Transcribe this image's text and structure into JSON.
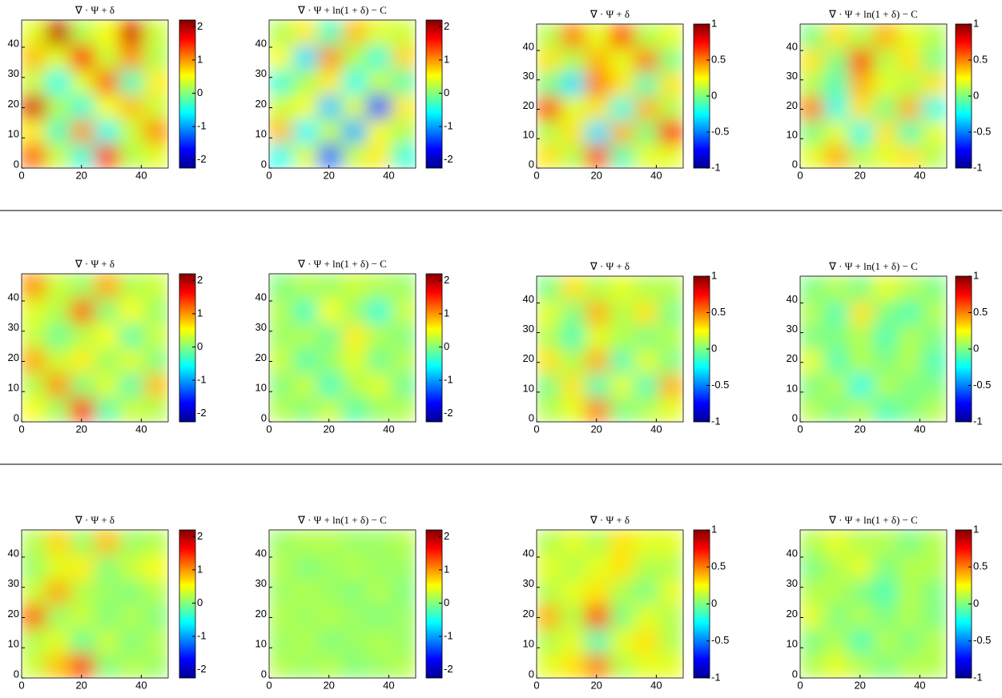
{
  "chart_data": [
    {
      "type": "heatmap",
      "title": "∇ · Ψ + δ",
      "colormap": "jet",
      "xlim": [
        0,
        49
      ],
      "ylim": [
        0,
        49
      ],
      "xticks": [
        0,
        20,
        40
      ],
      "yticks": [
        0,
        10,
        20,
        30,
        40
      ],
      "clim": [
        -2.25,
        2.2
      ],
      "cticks": [
        2,
        1,
        0,
        -1,
        -2
      ],
      "z": [
        [
          1.2,
          0.3,
          -0.4,
          1.5,
          0.2,
          0.4
        ],
        [
          0.6,
          -0.3,
          1.0,
          -0.5,
          0.3,
          1.0
        ],
        [
          1.8,
          0.2,
          -0.4,
          0.5,
          0.8,
          0.3
        ],
        [
          0.3,
          -0.5,
          0.4,
          1.2,
          -0.3,
          0.6
        ],
        [
          0.8,
          0.4,
          1.6,
          0.3,
          1.0,
          0.2
        ],
        [
          0.4,
          1.9,
          0.2,
          0.5,
          1.8,
          0.3
        ]
      ]
    },
    {
      "type": "heatmap",
      "title": "∇ · Ψ + ln(1 + δ) − C",
      "colormap": "jet",
      "xlim": [
        0,
        49
      ],
      "ylim": [
        0,
        49
      ],
      "xticks": [
        0,
        20,
        40
      ],
      "yticks": [
        0,
        10,
        20,
        30,
        40
      ],
      "clim": [
        -2.25,
        2.2
      ],
      "cticks": [
        2,
        1,
        0,
        -1,
        -2
      ],
      "z": [
        [
          -0.5,
          0.4,
          -1.2,
          0.3,
          0.6,
          -0.4
        ],
        [
          0.8,
          -0.6,
          0.3,
          -0.9,
          0.5,
          0.2
        ],
        [
          0.3,
          0.5,
          -0.8,
          0.4,
          -1.3,
          0.6
        ],
        [
          -0.4,
          0.2,
          0.6,
          -0.5,
          0.3,
          -0.2
        ],
        [
          0.5,
          -0.7,
          1.0,
          0.2,
          -0.4,
          0.7
        ],
        [
          0.2,
          0.6,
          -0.3,
          0.8,
          0.4,
          0.3
        ]
      ]
    },
    {
      "type": "heatmap",
      "title": "∇ · Ψ + δ",
      "colormap": "jet",
      "xlim": [
        0,
        49
      ],
      "ylim": [
        0,
        49
      ],
      "xticks": [
        0,
        20,
        40
      ],
      "yticks": [
        0,
        10,
        20,
        30,
        40
      ],
      "clim": [
        -1,
        1
      ],
      "cticks": [
        1,
        0.5,
        0,
        -0.5,
        -1
      ],
      "z": [
        [
          0.3,
          0.1,
          0.6,
          -0.1,
          0.2,
          0.2
        ],
        [
          0.1,
          0.3,
          -0.3,
          0.4,
          0.0,
          0.7
        ],
        [
          0.6,
          0.2,
          0.3,
          -0.2,
          0.4,
          0.1
        ],
        [
          0.0,
          -0.3,
          0.5,
          0.3,
          -0.1,
          0.3
        ],
        [
          0.3,
          0.1,
          0.4,
          0.2,
          0.5,
          0.0
        ],
        [
          0.1,
          0.5,
          0.2,
          0.6,
          0.1,
          0.2
        ]
      ]
    },
    {
      "type": "heatmap",
      "title": "∇ · Ψ + ln(1 + δ) − C",
      "colormap": "jet",
      "xlim": [
        0,
        49
      ],
      "ylim": [
        0,
        49
      ],
      "xticks": [
        0,
        20,
        40
      ],
      "yticks": [
        0,
        10,
        20,
        30,
        40
      ],
      "clim": [
        -1,
        1
      ],
      "cticks": [
        1,
        0.5,
        0,
        -0.5,
        -1
      ],
      "z": [
        [
          0.2,
          0.4,
          0.1,
          0.2,
          0.3,
          0.1
        ],
        [
          0.0,
          0.2,
          -0.2,
          0.3,
          -0.1,
          0.2
        ],
        [
          0.5,
          -0.2,
          0.3,
          0.0,
          0.4,
          -0.2
        ],
        [
          0.1,
          -0.1,
          0.4,
          0.2,
          0.1,
          0.3
        ],
        [
          0.3,
          0.0,
          0.6,
          0.1,
          0.3,
          0.0
        ],
        [
          0.0,
          0.3,
          0.1,
          0.4,
          0.2,
          0.1
        ]
      ]
    },
    {
      "type": "heatmap",
      "title": "∇ · Ψ + δ",
      "colormap": "jet",
      "xlim": [
        0,
        49
      ],
      "ylim": [
        0,
        49
      ],
      "xticks": [
        0,
        20,
        40
      ],
      "yticks": [
        0,
        10,
        20,
        30,
        40
      ],
      "clim": [
        -2.25,
        2.2
      ],
      "cticks": [
        2,
        1,
        0,
        -1,
        -2
      ],
      "z": [
        [
          0.5,
          0.1,
          1.5,
          -0.2,
          0.3,
          0.2
        ],
        [
          0.2,
          1.0,
          0.0,
          0.4,
          -0.2,
          0.8
        ],
        [
          0.9,
          0.3,
          0.6,
          0.1,
          0.4,
          0.0
        ],
        [
          0.3,
          -0.1,
          0.2,
          0.5,
          -0.2,
          0.3
        ],
        [
          0.4,
          0.2,
          1.2,
          0.0,
          0.5,
          0.1
        ],
        [
          1.0,
          0.3,
          0.1,
          0.9,
          0.2,
          0.3
        ]
      ]
    },
    {
      "type": "heatmap",
      "title": "∇ · Ψ + ln(1 + δ) − C",
      "colormap": "jet",
      "xlim": [
        0,
        49
      ],
      "ylim": [
        0,
        49
      ],
      "xticks": [
        0,
        20,
        40
      ],
      "yticks": [
        0,
        10,
        20,
        30,
        40
      ],
      "clim": [
        -2.25,
        2.2
      ],
      "cticks": [
        2,
        1,
        0,
        -1,
        -2
      ],
      "z": [
        [
          0.2,
          0.0,
          0.3,
          -0.2,
          0.1,
          0.2
        ],
        [
          0.0,
          0.3,
          -0.3,
          0.2,
          0.4,
          -0.1
        ],
        [
          0.3,
          -0.2,
          0.1,
          0.4,
          -0.1,
          0.2
        ],
        [
          0.1,
          0.2,
          -0.1,
          0.6,
          0.2,
          0.0
        ],
        [
          0.2,
          -0.3,
          0.5,
          0.1,
          -0.4,
          0.3
        ],
        [
          0.0,
          0.2,
          0.1,
          0.3,
          0.2,
          0.1
        ]
      ]
    },
    {
      "type": "heatmap",
      "title": "∇ · Ψ + δ",
      "colormap": "jet",
      "xlim": [
        0,
        49
      ],
      "ylim": [
        0,
        49
      ],
      "xticks": [
        0,
        20,
        40
      ],
      "yticks": [
        0,
        10,
        20,
        30,
        40
      ],
      "clim": [
        -1,
        1
      ],
      "cticks": [
        1,
        0.5,
        0,
        -0.5,
        -1
      ],
      "z": [
        [
          0.1,
          0.2,
          0.5,
          0.0,
          0.1,
          0.2
        ],
        [
          0.0,
          0.3,
          -0.1,
          0.2,
          -0.1,
          0.4
        ],
        [
          0.3,
          0.1,
          0.4,
          -0.1,
          0.2,
          0.0
        ],
        [
          0.1,
          -0.1,
          0.2,
          0.1,
          0.0,
          0.1
        ],
        [
          0.2,
          0.0,
          0.4,
          0.1,
          0.3,
          0.0
        ],
        [
          0.0,
          0.3,
          0.1,
          0.2,
          0.1,
          0.1
        ]
      ]
    },
    {
      "type": "heatmap",
      "title": "∇ · Ψ + ln(1 + δ) − C",
      "colormap": "jet",
      "xlim": [
        0,
        49
      ],
      "ylim": [
        0,
        49
      ],
      "xticks": [
        0,
        20,
        40
      ],
      "yticks": [
        0,
        10,
        20,
        30,
        40
      ],
      "clim": [
        -1,
        1
      ],
      "cticks": [
        1,
        0.5,
        0,
        -0.5,
        -1
      ],
      "z": [
        [
          0.1,
          0.0,
          0.1,
          -0.1,
          0.0,
          0.1
        ],
        [
          0.0,
          0.1,
          -0.2,
          0.1,
          0.0,
          0.0
        ],
        [
          0.2,
          -0.1,
          0.1,
          0.0,
          0.1,
          -0.1
        ],
        [
          0.0,
          0.0,
          0.1,
          -0.1,
          0.1,
          0.0
        ],
        [
          0.1,
          -0.1,
          0.3,
          0.0,
          -0.1,
          0.1
        ],
        [
          0.0,
          0.1,
          0.0,
          0.2,
          0.1,
          0.0
        ]
      ]
    },
    {
      "type": "heatmap",
      "title": "∇ · Ψ + δ",
      "colormap": "jet",
      "xlim": [
        0,
        49
      ],
      "ylim": [
        0,
        49
      ],
      "xticks": [
        0,
        20,
        40
      ],
      "yticks": [
        0,
        10,
        20,
        30,
        40
      ],
      "clim": [
        -2.25,
        2.2
      ],
      "cticks": [
        2,
        1,
        0,
        -1,
        -2
      ],
      "z": [
        [
          0.3,
          0.8,
          1.4,
          0.0,
          0.2,
          0.1
        ],
        [
          0.2,
          0.4,
          -0.1,
          0.3,
          0.0,
          0.2
        ],
        [
          1.2,
          0.1,
          0.3,
          0.0,
          0.2,
          0.0
        ],
        [
          0.3,
          0.9,
          0.2,
          0.1,
          0.0,
          0.2
        ],
        [
          0.1,
          0.4,
          0.6,
          0.0,
          0.3,
          0.5
        ],
        [
          0.2,
          0.7,
          0.1,
          0.8,
          0.1,
          0.2
        ]
      ]
    },
    {
      "type": "heatmap",
      "title": "∇ · Ψ + ln(1 + δ) − C",
      "colormap": "jet",
      "xlim": [
        0,
        49
      ],
      "ylim": [
        0,
        49
      ],
      "xticks": [
        0,
        20,
        40
      ],
      "yticks": [
        0,
        10,
        20,
        30,
        40
      ],
      "clim": [
        -2.25,
        2.2
      ],
      "cticks": [
        2,
        1,
        0,
        -1,
        -2
      ],
      "z": [
        [
          0.2,
          0.1,
          0.2,
          0.0,
          0.1,
          0.2
        ],
        [
          0.1,
          0.2,
          0.0,
          0.1,
          0.2,
          0.1
        ],
        [
          0.2,
          0.1,
          0.2,
          0.1,
          0.0,
          0.1
        ],
        [
          0.1,
          0.2,
          0.1,
          0.0,
          0.2,
          0.0
        ],
        [
          0.2,
          0.0,
          0.1,
          0.2,
          0.1,
          0.1
        ],
        [
          0.1,
          0.2,
          0.2,
          0.1,
          0.1,
          0.2
        ]
      ]
    },
    {
      "type": "heatmap",
      "title": "∇ · Ψ + δ",
      "colormap": "jet",
      "xlim": [
        0,
        49
      ],
      "ylim": [
        0,
        49
      ],
      "xticks": [
        0,
        20,
        40
      ],
      "yticks": [
        0,
        10,
        20,
        30,
        40
      ],
      "clim": [
        -1,
        1
      ],
      "cticks": [
        1,
        0.5,
        0,
        -0.5,
        -1
      ],
      "z": [
        [
          0.2,
          0.3,
          0.5,
          0.1,
          0.2,
          0.2
        ],
        [
          0.1,
          0.2,
          -0.1,
          0.2,
          0.3,
          0.1
        ],
        [
          0.4,
          0.1,
          0.6,
          0.0,
          0.2,
          0.1
        ],
        [
          0.1,
          0.2,
          0.3,
          0.1,
          0.0,
          0.2
        ],
        [
          0.2,
          0.1,
          0.2,
          0.3,
          0.1,
          0.1
        ],
        [
          0.1,
          0.2,
          0.1,
          0.3,
          0.2,
          0.2
        ]
      ]
    },
    {
      "type": "heatmap",
      "title": "∇ · Ψ + ln(1 + δ) − C",
      "colormap": "jet",
      "xlim": [
        0,
        49
      ],
      "ylim": [
        0,
        49
      ],
      "xticks": [
        0,
        20,
        40
      ],
      "yticks": [
        0,
        10,
        20,
        30,
        40
      ],
      "clim": [
        -1,
        1
      ],
      "cticks": [
        1,
        0.5,
        0,
        -0.5,
        -1
      ],
      "z": [
        [
          0.1,
          0.2,
          0.1,
          0.0,
          0.1,
          0.1
        ],
        [
          0.0,
          0.1,
          -0.1,
          0.1,
          0.0,
          0.1
        ],
        [
          0.2,
          0.0,
          0.1,
          0.0,
          0.1,
          0.0
        ],
        [
          0.1,
          0.1,
          0.0,
          -0.1,
          0.1,
          0.0
        ],
        [
          0.0,
          0.1,
          0.2,
          0.0,
          0.1,
          0.1
        ],
        [
          0.1,
          0.2,
          0.1,
          0.1,
          0.0,
          0.1
        ]
      ]
    }
  ]
}
